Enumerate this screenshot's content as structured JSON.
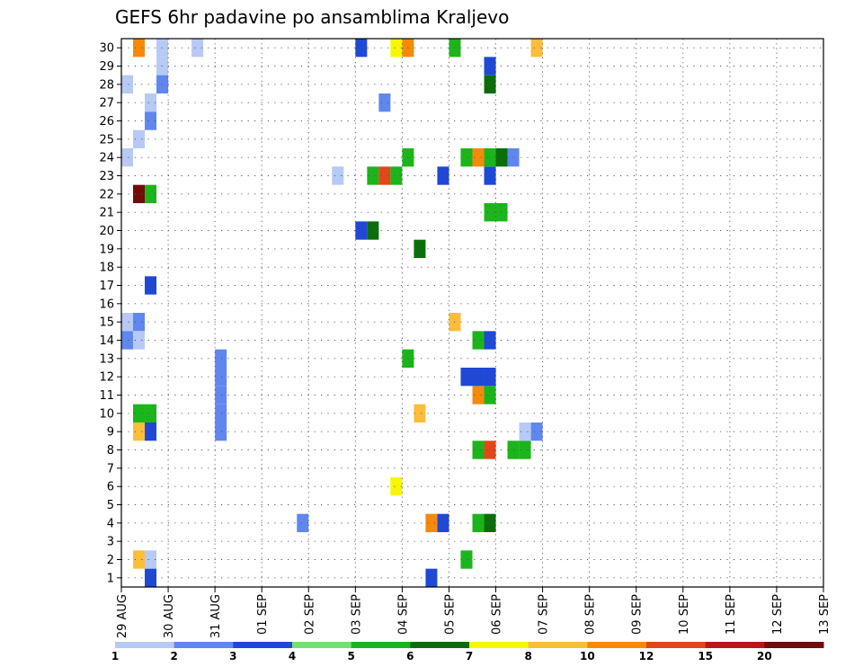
{
  "chart_data": {
    "type": "heatmap",
    "title": "GEFS 6hr padavine po ansamblima Kraljevo",
    "x_ticks": [
      "29 AUG",
      "30 AUG",
      "31 AUG",
      "01 SEP",
      "02 SEP",
      "03 SEP",
      "04 SEP",
      "05 SEP",
      "06 SEP",
      "07 SEP",
      "08 SEP",
      "09 SEP",
      "10 SEP",
      "11 SEP",
      "12 SEP",
      "13 SEP"
    ],
    "y_ticks": [
      1,
      2,
      3,
      4,
      5,
      6,
      7,
      8,
      9,
      10,
      11,
      12,
      13,
      14,
      15,
      16,
      17,
      18,
      19,
      20,
      21,
      22,
      23,
      24,
      25,
      26,
      27,
      28,
      29,
      30
    ],
    "ylim": [
      0.5,
      30.5
    ],
    "steps_per_day": 4,
    "grid": true,
    "legend": {
      "placement": "bottom",
      "labels": [
        "1",
        "2",
        "3",
        "4",
        "5",
        "6",
        "7",
        "8",
        "10",
        "12",
        "15",
        "20"
      ],
      "colors": [
        "#b7c9f5",
        "#5f87ee",
        "#1f48d6",
        "#6fe46f",
        "#1bb51b",
        "#0b6e0b",
        "#f7f700",
        "#fbbd3a",
        "#f58a0a",
        "#e2471a",
        "#b81818",
        "#720b0b"
      ]
    },
    "cells": [
      {
        "x": 1,
        "y": 30,
        "v": 10
      },
      {
        "x": 3,
        "y": 30,
        "v": 1
      },
      {
        "x": 3,
        "y": 29,
        "v": 1
      },
      {
        "x": 3,
        "y": 28,
        "v": 2
      },
      {
        "x": 6,
        "y": 30,
        "v": 1
      },
      {
        "x": 1,
        "y": 22,
        "v": 20
      },
      {
        "x": 2,
        "y": 22,
        "v": 5
      },
      {
        "x": 2,
        "y": 27,
        "v": 1
      },
      {
        "x": 2,
        "y": 26,
        "v": 2
      },
      {
        "x": 1,
        "y": 25,
        "v": 1
      },
      {
        "x": 0,
        "y": 28,
        "v": 1
      },
      {
        "x": 0,
        "y": 24,
        "v": 1
      },
      {
        "x": 2,
        "y": 17,
        "v": 3
      },
      {
        "x": 1,
        "y": 10,
        "v": 5
      },
      {
        "x": 2,
        "y": 10,
        "v": 5
      },
      {
        "x": 1,
        "y": 9,
        "v": 8
      },
      {
        "x": 2,
        "y": 9,
        "v": 3
      },
      {
        "x": 1,
        "y": 2,
        "v": 8
      },
      {
        "x": 2,
        "y": 2,
        "v": 1
      },
      {
        "x": 2,
        "y": 1,
        "v": 3
      },
      {
        "x": 0,
        "y": 15,
        "v": 1
      },
      {
        "x": 1,
        "y": 15,
        "v": 2
      },
      {
        "x": 0,
        "y": 14,
        "v": 2
      },
      {
        "x": 1,
        "y": 14,
        "v": 1
      },
      {
        "x": 8,
        "y": 13,
        "v": 2
      },
      {
        "x": 8,
        "y": 12,
        "v": 2
      },
      {
        "x": 8,
        "y": 11,
        "v": 2
      },
      {
        "x": 8,
        "y": 10,
        "v": 2
      },
      {
        "x": 8,
        "y": 9,
        "v": 2
      },
      {
        "x": 15,
        "y": 4,
        "v": 2
      },
      {
        "x": 18,
        "y": 23,
        "v": 1
      },
      {
        "x": 20,
        "y": 30,
        "v": 3
      },
      {
        "x": 21,
        "y": 23,
        "v": 5
      },
      {
        "x": 22,
        "y": 23,
        "v": 12
      },
      {
        "x": 23,
        "y": 23,
        "v": 5
      },
      {
        "x": 20,
        "y": 20,
        "v": 3
      },
      {
        "x": 21,
        "y": 20,
        "v": 6
      },
      {
        "x": 23,
        "y": 30,
        "v": 7
      },
      {
        "x": 24,
        "y": 30,
        "v": 10
      },
      {
        "x": 23,
        "y": 6,
        "v": 7
      },
      {
        "x": 22,
        "y": 27,
        "v": 2
      },
      {
        "x": 31,
        "y": 23,
        "v": 3
      },
      {
        "x": 31,
        "y": 4,
        "v": 6
      },
      {
        "x": 30,
        "y": 4,
        "v": 5
      },
      {
        "x": 29,
        "y": 2,
        "v": 5
      },
      {
        "x": 30,
        "y": 14,
        "v": 5
      },
      {
        "x": 31,
        "y": 14,
        "v": 3
      },
      {
        "x": 30,
        "y": 8,
        "v": 5
      },
      {
        "x": 31,
        "y": 8,
        "v": 12
      },
      {
        "x": 30,
        "y": 11,
        "v": 10
      },
      {
        "x": 31,
        "y": 11,
        "v": 5
      },
      {
        "x": 29,
        "y": 24,
        "v": 5
      },
      {
        "x": 30,
        "y": 24,
        "v": 10
      },
      {
        "x": 31,
        "y": 24,
        "v": 5
      },
      {
        "x": 32,
        "y": 24,
        "v": 6
      },
      {
        "x": 33,
        "y": 24,
        "v": 2
      },
      {
        "x": 31,
        "y": 28,
        "v": 6
      },
      {
        "x": 31,
        "y": 29,
        "v": 3
      },
      {
        "x": 29,
        "y": 12,
        "v": 3
      },
      {
        "x": 30,
        "y": 12,
        "v": 3
      },
      {
        "x": 31,
        "y": 12,
        "v": 3
      },
      {
        "x": 28,
        "y": 15,
        "v": 8
      },
      {
        "x": 25,
        "y": 10,
        "v": 8
      },
      {
        "x": 27,
        "y": 23,
        "v": 3
      },
      {
        "x": 27,
        "y": 4,
        "v": 3
      },
      {
        "x": 26,
        "y": 4,
        "v": 10
      },
      {
        "x": 26,
        "y": 1,
        "v": 3
      },
      {
        "x": 28,
        "y": 30,
        "v": 5
      },
      {
        "x": 35,
        "y": 30,
        "v": 8
      },
      {
        "x": 34,
        "y": 8,
        "v": 5
      },
      {
        "x": 33,
        "y": 8,
        "v": 5
      },
      {
        "x": 35,
        "y": 9,
        "v": 2
      },
      {
        "x": 34,
        "y": 9,
        "v": 1
      },
      {
        "x": 31,
        "y": 21,
        "v": 5
      },
      {
        "x": 32,
        "y": 21,
        "v": 5
      },
      {
        "x": 24,
        "y": 24,
        "v": 5
      },
      {
        "x": 24,
        "y": 13,
        "v": 5
      },
      {
        "x": 25,
        "y": 19,
        "v": 6
      }
    ]
  }
}
